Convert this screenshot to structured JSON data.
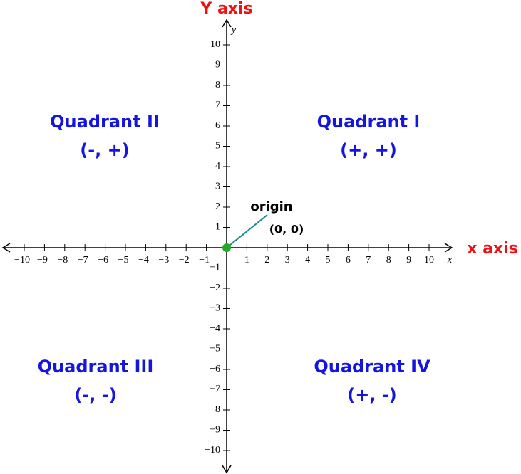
{
  "y_axis_title": "Y axis",
  "x_axis_title": "x axis",
  "y_var": "y",
  "x_var": "x",
  "xticks": [
    {
      "value": -10,
      "label": "−10"
    },
    {
      "value": -9,
      "label": "−9"
    },
    {
      "value": -8,
      "label": "−8"
    },
    {
      "value": -7,
      "label": "−7"
    },
    {
      "value": -6,
      "label": "−6"
    },
    {
      "value": -5,
      "label": "−5"
    },
    {
      "value": -4,
      "label": "−4"
    },
    {
      "value": -3,
      "label": "−3"
    },
    {
      "value": -2,
      "label": "−2"
    },
    {
      "value": -1,
      "label": "−1"
    },
    1,
    2,
    3,
    4,
    5,
    6,
    7,
    8,
    9,
    10
  ],
  "yticks": [
    {
      "value": -10,
      "label": "−10"
    },
    {
      "value": -9,
      "label": "−9"
    },
    {
      "value": -8,
      "label": "−8"
    },
    {
      "value": -7,
      "label": "−7"
    },
    {
      "value": -6,
      "label": "−6"
    },
    {
      "value": -5,
      "label": "−5"
    },
    {
      "value": -4,
      "label": "−4"
    },
    {
      "value": -3,
      "label": "−3"
    },
    {
      "value": -2,
      "label": "−2"
    },
    {
      "value": -1,
      "label": "−1"
    },
    1,
    2,
    3,
    4,
    5,
    6,
    7,
    8,
    9,
    10
  ],
  "origin": {
    "label": "origin",
    "coords": "(0, 0)"
  },
  "quadrants": [
    {
      "name": "Quadrant I",
      "signs": "(+, +)"
    },
    {
      "name": "Quadrant II",
      "signs": "(-, +)"
    },
    {
      "name": "Quadrant III",
      "signs": "(-, -)"
    },
    {
      "name": "Quadrant IV",
      "signs": "(+, -)"
    }
  ]
}
